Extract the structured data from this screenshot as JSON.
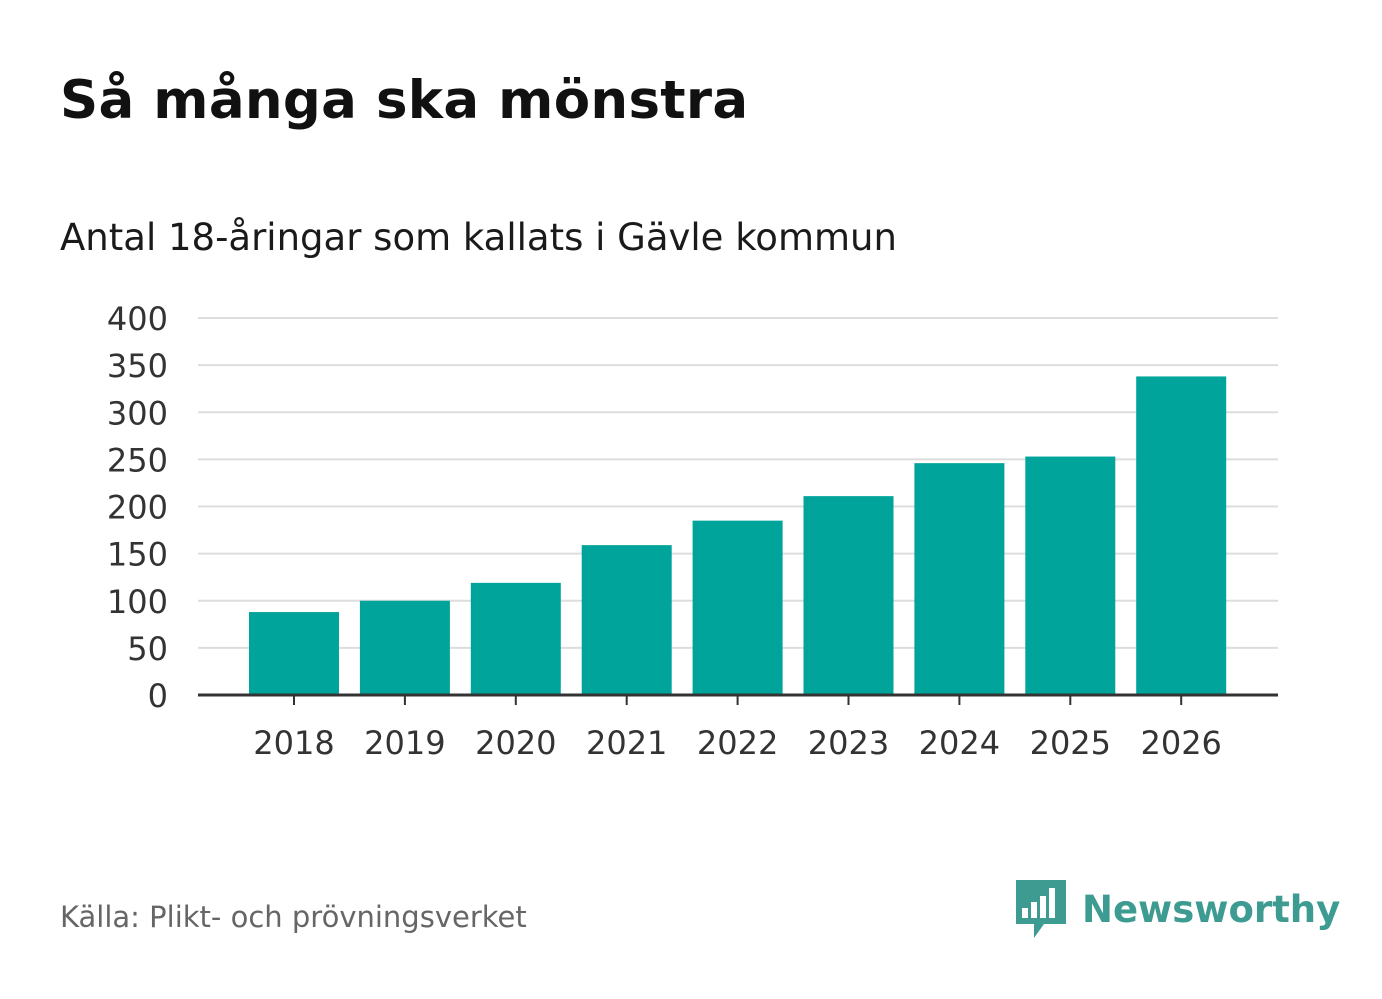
{
  "title": "Så många ska mönstra",
  "subtitle": "Antal 18-åringar som kallats i Gävle kommun",
  "source": "Källa: Plikt- och prövningsverket",
  "brand": "Newsworthy",
  "colors": {
    "bar": "#00a49a",
    "grid": "#dddddd",
    "axis": "#333333",
    "brand": "#3d9b92"
  },
  "chart_data": {
    "type": "bar",
    "title": "Så många ska mönstra",
    "subtitle": "Antal 18-åringar som kallats i Gävle kommun",
    "xlabel": "",
    "ylabel": "",
    "categories": [
      "2018",
      "2019",
      "2020",
      "2021",
      "2022",
      "2023",
      "2024",
      "2025",
      "2026"
    ],
    "values": [
      88,
      100,
      119,
      159,
      185,
      211,
      246,
      253,
      338
    ],
    "ylim": [
      0,
      400
    ],
    "yticks": [
      0,
      50,
      100,
      150,
      200,
      250,
      300,
      350,
      400
    ],
    "grid": true,
    "legend": "none"
  }
}
